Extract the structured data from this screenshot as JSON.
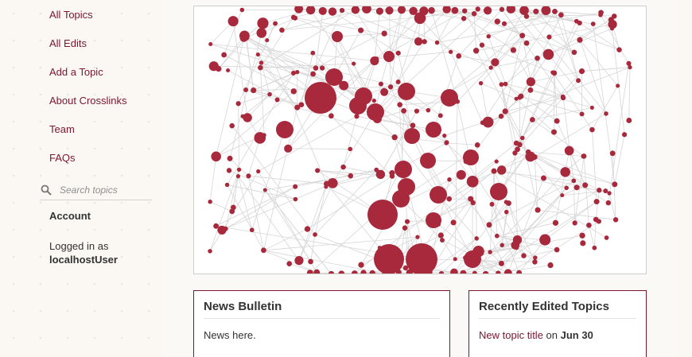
{
  "sidebar": {
    "nav": [
      {
        "label": "All Topics"
      },
      {
        "label": "All Edits"
      },
      {
        "label": "Add a Topic"
      },
      {
        "label": "About Crosslinks"
      },
      {
        "label": "Team"
      },
      {
        "label": "FAQs"
      }
    ],
    "search": {
      "placeholder": "Search topics",
      "icon": "search-icon"
    },
    "account": {
      "heading": "Account",
      "logged_in_prefix": "Logged in as",
      "username": "localhostUser"
    }
  },
  "graph": {
    "node_color": "#a8283c",
    "edge_color": "#d6d6d6"
  },
  "news": {
    "title": "News Bulletin",
    "body": "News here."
  },
  "recent": {
    "title": "Recently Edited Topics",
    "item_title": "New topic title",
    "item_on": "on",
    "item_date": "Jun 30"
  },
  "colors": {
    "accent": "#7a1630",
    "background": "#fbf8f3"
  }
}
